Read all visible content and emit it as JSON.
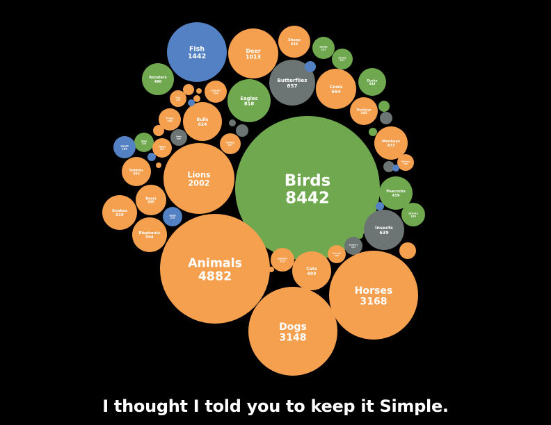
{
  "chart_data": {
    "type": "bubble",
    "title": "",
    "caption": "I thought I told you to keep it Simple.",
    "colors": {
      "orange": "#f5a04f",
      "green": "#6fa84f",
      "blue": "#5381c3",
      "gray": "#6c7573"
    },
    "bubbles": [
      {
        "name": "Birds",
        "value": 8442,
        "color": "green"
      },
      {
        "name": "Animals",
        "value": 4882,
        "color": "orange"
      },
      {
        "name": "Horses",
        "value": 3168,
        "color": "orange"
      },
      {
        "name": "Dogs",
        "value": 3148,
        "color": "orange"
      },
      {
        "name": "Lions",
        "value": 2002,
        "color": "orange"
      },
      {
        "name": "Fish",
        "value": 1442,
        "color": "blue"
      },
      {
        "name": "Deer",
        "value": 1013,
        "color": "orange"
      },
      {
        "name": "Butterflies",
        "value": 857,
        "color": "gray"
      },
      {
        "name": "Eagles",
        "value": 818,
        "color": "green"
      },
      {
        "name": "Cows",
        "value": 664,
        "color": "orange"
      },
      {
        "name": "Insects",
        "value": 639,
        "color": "gray"
      },
      {
        "name": "Bulls",
        "value": 624,
        "color": "orange"
      },
      {
        "name": "Cats",
        "value": 603,
        "color": "orange"
      },
      {
        "name": "Snakes",
        "value": 519,
        "color": "orange"
      },
      {
        "name": "Elephants",
        "value": 504,
        "color": "orange"
      },
      {
        "name": "Roosters",
        "value": 486,
        "color": "green"
      },
      {
        "name": "Monkeys",
        "value": 473,
        "color": "orange"
      },
      {
        "name": "Sheep",
        "value": 434,
        "color": "orange"
      },
      {
        "name": "Peacocks",
        "value": 439,
        "color": "green"
      },
      {
        "name": "Ducks",
        "value": 343,
        "color": "green"
      },
      {
        "name": "Donkeys",
        "value": 343,
        "color": "orange"
      },
      {
        "name": "Bears",
        "value": 395,
        "color": "orange"
      },
      {
        "name": "Rabbits",
        "value": 366,
        "color": "orange"
      },
      {
        "name": "Camels",
        "value": 254,
        "color": "orange"
      },
      {
        "name": "Frogs",
        "value": 240,
        "color": "orange"
      },
      {
        "name": "Goats",
        "value": 237,
        "color": "green"
      },
      {
        "name": "Crows",
        "value": 211,
        "color": "green"
      },
      {
        "name": "Owls",
        "value": 219,
        "color": "green"
      },
      {
        "name": "Swans",
        "value": 219,
        "color": "orange"
      },
      {
        "name": "Tigers",
        "value": 211,
        "color": "orange"
      },
      {
        "name": "Turtles",
        "value": 207,
        "color": "orange"
      },
      {
        "name": "Bats",
        "value": 237,
        "color": "gray"
      },
      {
        "name": "Squid",
        "value": 186,
        "color": "blue"
      },
      {
        "name": "Seals",
        "value": 175,
        "color": "blue"
      },
      {
        "name": "Parrots",
        "value": 168,
        "color": "orange"
      },
      {
        "name": "Spiders",
        "value": 157,
        "color": "gray"
      },
      {
        "name": "Pigs",
        "value": 211,
        "color": "orange"
      },
      {
        "name": "Wolves",
        "value": 140,
        "color": "orange"
      },
      {
        "name": "Whales",
        "value": 128,
        "color": "blue"
      },
      {
        "name": "Storks",
        "value": 186,
        "color": "green"
      },
      {
        "name": "",
        "value": 120,
        "color": "orange"
      },
      {
        "name": "",
        "value": 105,
        "color": "orange"
      },
      {
        "name": "",
        "value": 90,
        "color": "orange"
      },
      {
        "name": "",
        "value": 70,
        "color": "orange"
      },
      {
        "name": "",
        "value": 55,
        "color": "orange"
      },
      {
        "name": "",
        "value": 48,
        "color": "orange"
      },
      {
        "name": "",
        "value": 40,
        "color": "orange"
      },
      {
        "name": "",
        "value": 60,
        "color": "gray"
      },
      {
        "name": "",
        "value": 50,
        "color": "gray"
      },
      {
        "name": "",
        "value": 45,
        "color": "gray"
      },
      {
        "name": "",
        "value": 40,
        "color": "gray"
      },
      {
        "name": "",
        "value": 45,
        "color": "blue"
      },
      {
        "name": "",
        "value": 35,
        "color": "blue"
      },
      {
        "name": "",
        "value": 30,
        "color": "blue"
      },
      {
        "name": "",
        "value": 25,
        "color": "blue"
      },
      {
        "name": "",
        "value": 40,
        "color": "green"
      },
      {
        "name": "",
        "value": 30,
        "color": "green"
      },
      {
        "name": "",
        "value": 25,
        "color": "green"
      }
    ]
  }
}
